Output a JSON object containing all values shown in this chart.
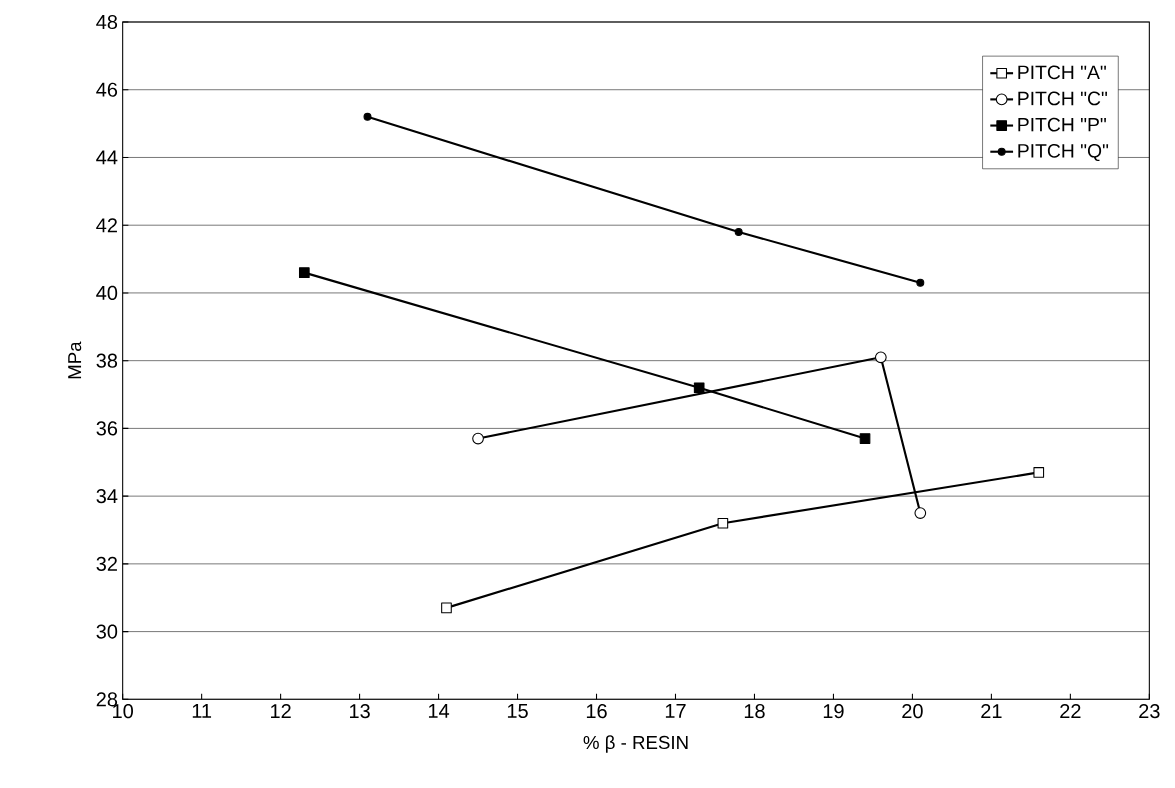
{
  "chart_data": {
    "type": "line",
    "xlabel": "% β - RESIN",
    "ylabel": "MPa",
    "xlim": [
      10,
      23
    ],
    "xticks": [
      10,
      11,
      12,
      13,
      14,
      15,
      16,
      17,
      18,
      19,
      20,
      21,
      22,
      23
    ],
    "ylim": [
      28,
      48
    ],
    "yticks": [
      28,
      30,
      32,
      34,
      36,
      38,
      40,
      42,
      44,
      46,
      48
    ],
    "grid": "y",
    "legend": "top right",
    "line_style": "solid",
    "series": [
      {
        "name": "PITCH \"A\"",
        "color": "#000000",
        "marker": "square",
        "x": [
          14.1,
          17.6,
          21.6
        ],
        "values": [
          30.7,
          33.2,
          34.7
        ]
      },
      {
        "name": "PITCH \"C\"",
        "color": "#000000",
        "marker": "circle",
        "x": [
          14.5,
          19.6,
          20.1
        ],
        "values": [
          35.7,
          38.1,
          33.5
        ]
      },
      {
        "name": "PITCH \"P\"",
        "color": "#000000",
        "marker": "square",
        "x": [
          12.3,
          17.3,
          19.4
        ],
        "values": [
          40.6,
          37.2,
          35.7
        ]
      },
      {
        "name": "PITCH \"Q\"",
        "color": "#000000",
        "marker": "circle",
        "x": [
          13.1,
          17.8,
          20.1
        ],
        "values": [
          45.2,
          41.8,
          40.3
        ]
      }
    ]
  }
}
